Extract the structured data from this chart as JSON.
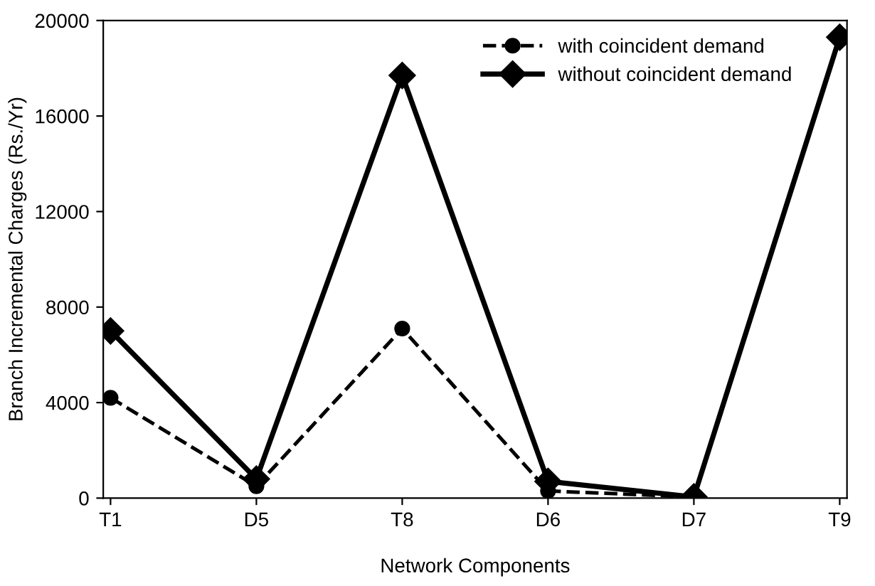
{
  "chart_data": {
    "type": "line",
    "xlabel": "Network Components",
    "ylabel": "Branch Incremental Charges (Rs./Yr)",
    "categories": [
      "T1",
      "D5",
      "T8",
      "D6",
      "D7",
      "T9"
    ],
    "series": [
      {
        "name": "with coincident demand",
        "color": "#000000",
        "marker": "circle",
        "line_style": "dashed",
        "values": [
          4200,
          500,
          7100,
          300,
          50,
          19300
        ]
      },
      {
        "name": "without coincident demand",
        "color": "#000000",
        "marker": "diamond",
        "line_style": "solid",
        "values": [
          7000,
          800,
          17700,
          700,
          50,
          19300
        ]
      }
    ],
    "ylim": [
      0,
      20000
    ],
    "yticks": [
      0,
      4000,
      8000,
      12000,
      16000,
      20000
    ],
    "grid": false,
    "legend": "top right"
  }
}
